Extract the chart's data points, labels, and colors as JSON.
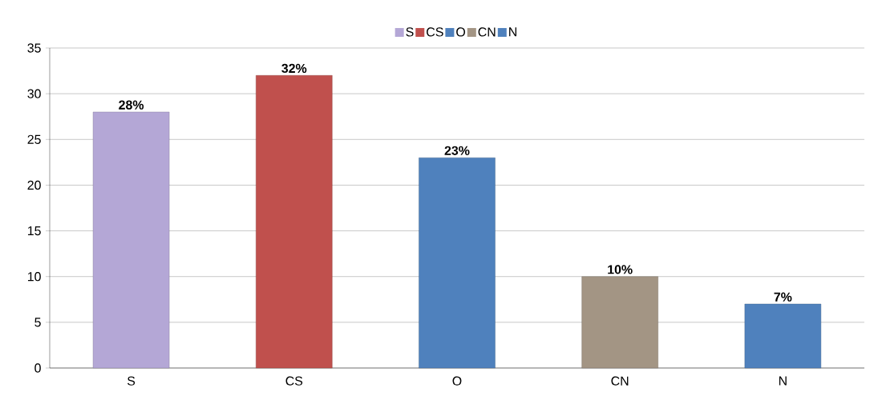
{
  "chart_data": {
    "type": "bar",
    "categories": [
      "S",
      "CS",
      "O",
      "CN",
      "N"
    ],
    "series": [
      {
        "name": "S",
        "color": "#b4a7d6",
        "values": [
          28,
          null,
          null,
          null,
          null
        ],
        "value_labels": [
          "28%",
          null,
          null,
          null,
          null
        ]
      },
      {
        "name": "CS",
        "color": "#c0504d",
        "values": [
          null,
          32,
          null,
          null,
          null
        ],
        "value_labels": [
          null,
          "32%",
          null,
          null,
          null
        ]
      },
      {
        "name": "O",
        "color": "#4f81bd",
        "values": [
          null,
          null,
          23,
          null,
          null
        ],
        "value_labels": [
          null,
          null,
          "23%",
          null,
          null
        ]
      },
      {
        "name": "CN",
        "color": "#a39584",
        "values": [
          null,
          null,
          null,
          10,
          null
        ],
        "value_labels": [
          null,
          null,
          null,
          "10%",
          null
        ]
      },
      {
        "name": "N",
        "color": "#4f81bd",
        "values": [
          null,
          null,
          null,
          null,
          7
        ],
        "value_labels": [
          null,
          null,
          null,
          null,
          "7%"
        ]
      }
    ],
    "ylim": [
      0,
      35
    ],
    "yticks": [
      0,
      5,
      10,
      15,
      20,
      25,
      30,
      35
    ],
    "grid": "y",
    "legend": "top"
  }
}
